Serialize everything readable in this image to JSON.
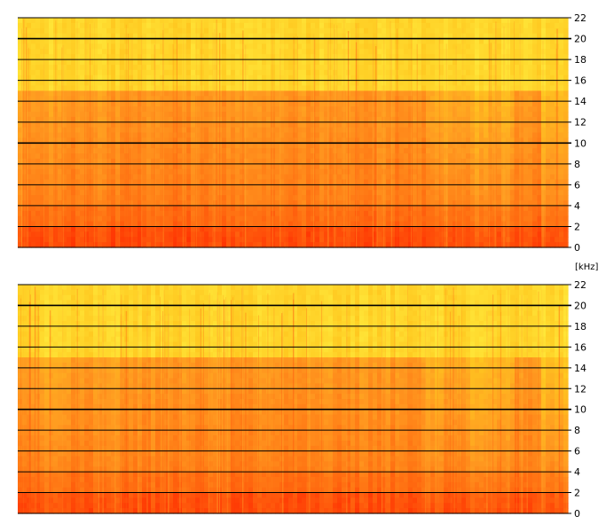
{
  "chart_data": [
    {
      "type": "heatmap",
      "name": "spectrogram-top",
      "ylim": [
        0,
        22
      ],
      "yticks": [
        0,
        2,
        4,
        6,
        8,
        10,
        12,
        14,
        16,
        18,
        20,
        22
      ],
      "ytick_labels": [
        "0",
        "2",
        "4",
        "6",
        "8",
        "10",
        "12",
        "14",
        "16",
        "18",
        "20",
        "22"
      ],
      "grid": true,
      "colormap": [
        "#ff2a00",
        "#ff6a10",
        "#ff9a20",
        "#ffc820",
        "#fff040"
      ],
      "bands_khz": [
        {
          "from": 15,
          "to": 22,
          "level": 0.88
        },
        {
          "from": 4,
          "to": 15,
          "level": 0.45
        },
        {
          "from": 2,
          "to": 4,
          "level": 0.32
        },
        {
          "from": 0,
          "to": 2,
          "level": 0.12
        }
      ],
      "time_segments": [
        {
          "from": 0.0,
          "to": 0.1,
          "level": 0.52
        },
        {
          "from": 0.1,
          "to": 0.22,
          "level": 0.44
        },
        {
          "from": 0.22,
          "to": 0.74,
          "level": 0.4
        },
        {
          "from": 0.74,
          "to": 0.82,
          "level": 0.62
        },
        {
          "from": 0.82,
          "to": 0.907,
          "level": 0.72
        },
        {
          "from": 0.907,
          "to": 0.95,
          "level": 0.4
        },
        {
          "from": 0.95,
          "to": 1.0,
          "level": 0.8
        }
      ]
    },
    {
      "type": "heatmap",
      "name": "spectrogram-bottom",
      "ylim": [
        0,
        22
      ],
      "yticks": [
        0,
        2,
        4,
        6,
        8,
        10,
        12,
        14,
        16,
        18,
        20,
        22
      ],
      "ytick_labels": [
        "0",
        "2",
        "4",
        "6",
        "8",
        "10",
        "12",
        "14",
        "16",
        "18",
        "20",
        "22"
      ],
      "ylabel": "[kHz]",
      "grid": true,
      "colormap": [
        "#ff2a00",
        "#ff6a10",
        "#ff9a20",
        "#ffc820",
        "#fff040"
      ],
      "bands_khz": [
        {
          "from": 15,
          "to": 22,
          "level": 0.88
        },
        {
          "from": 4,
          "to": 15,
          "level": 0.47
        },
        {
          "from": 2,
          "to": 4,
          "level": 0.34
        },
        {
          "from": 0,
          "to": 2,
          "level": 0.14
        }
      ],
      "time_segments": [
        {
          "from": 0.0,
          "to": 0.1,
          "level": 0.54
        },
        {
          "from": 0.1,
          "to": 0.22,
          "level": 0.46
        },
        {
          "from": 0.22,
          "to": 0.74,
          "level": 0.42
        },
        {
          "from": 0.74,
          "to": 0.82,
          "level": 0.64
        },
        {
          "from": 0.82,
          "to": 0.907,
          "level": 0.74
        },
        {
          "from": 0.907,
          "to": 0.95,
          "level": 0.42
        },
        {
          "from": 0.95,
          "to": 1.0,
          "level": 0.82
        }
      ]
    }
  ]
}
